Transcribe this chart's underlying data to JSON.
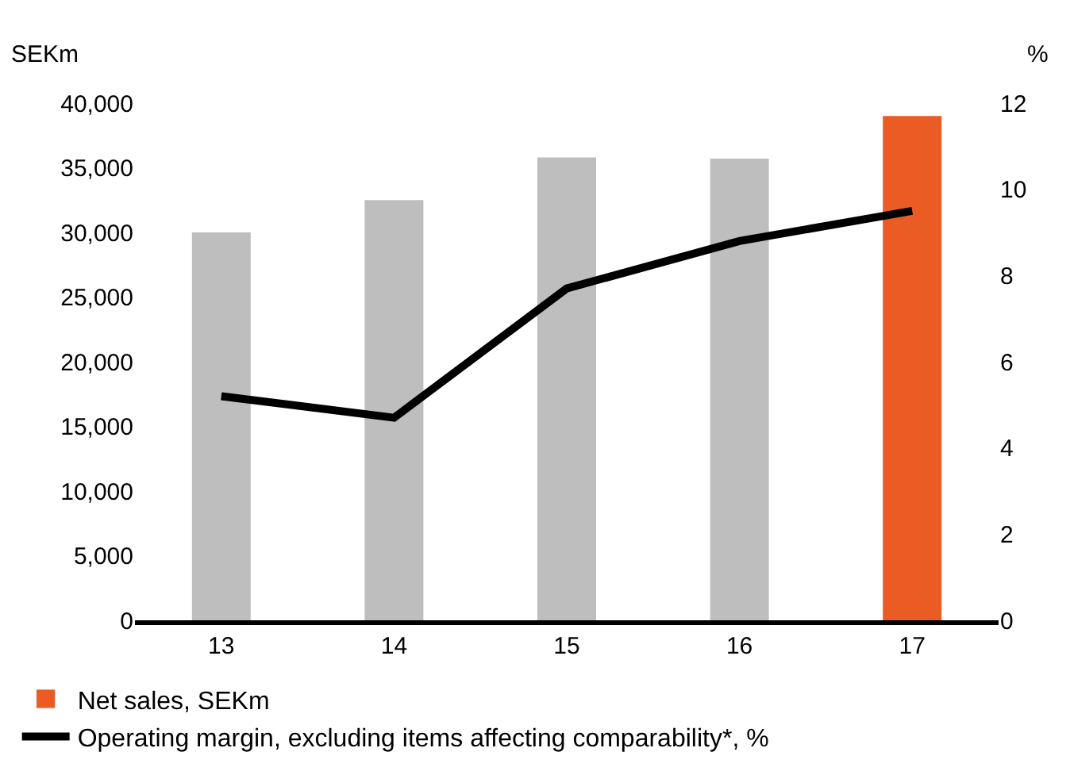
{
  "chart_data": {
    "type": "bar",
    "ylabel": "SEKm",
    "y2label": "%",
    "categories": [
      "13",
      "14",
      "15",
      "16",
      "17"
    ],
    "series": [
      {
        "name": "Net sales, SEKm",
        "color": "#eb5b24",
        "colors": [
          "#bebebe",
          "#bebebe",
          "#bebebe",
          "#bebebe",
          "#eb5b24"
        ],
        "values": [
          30000,
          32500,
          35800,
          35700,
          39000
        ]
      },
      {
        "type": "line",
        "axis": "y2",
        "name": "Operating margin, excluding items affecting comparability*, %",
        "color": "#000000",
        "values": [
          5.2,
          4.7,
          7.7,
          8.8,
          9.5
        ]
      }
    ],
    "ylim": [
      0,
      40000
    ],
    "yticks": [
      {
        "value": 0,
        "label": "0"
      },
      {
        "value": 5000,
        "label": "5,000"
      },
      {
        "value": 10000,
        "label": "10,000"
      },
      {
        "value": 15000,
        "label": "15,000"
      },
      {
        "value": 20000,
        "label": "20,000"
      },
      {
        "value": 25000,
        "label": "25,000"
      },
      {
        "value": 30000,
        "label": "30,000"
      },
      {
        "value": 35000,
        "label": "35,000"
      },
      {
        "value": 40000,
        "label": "40,000"
      }
    ],
    "y2lim": [
      0,
      12
    ],
    "y2ticks": [
      0,
      2,
      4,
      6,
      8,
      10,
      12
    ],
    "legend": "bottom left",
    "marker": "none",
    "line_style": "solid"
  }
}
